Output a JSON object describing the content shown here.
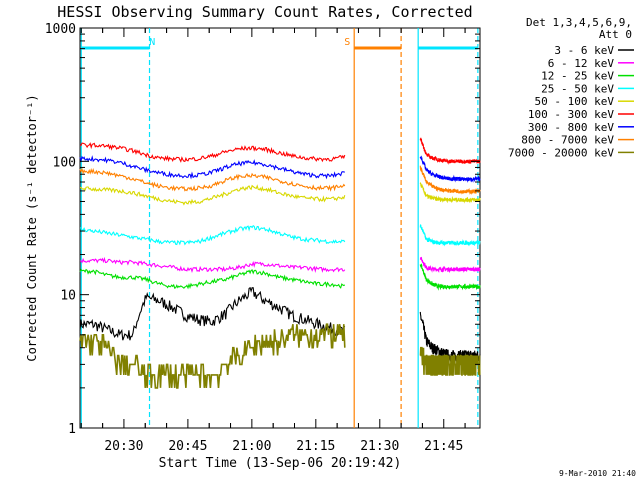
{
  "chart_data": {
    "type": "line",
    "title": "HESSI Observing Summary Count Rates, Corrected",
    "xlabel": "Start Time (13-Sep-06 20:19:42)",
    "ylabel": "Corrected Count Rate (s⁻¹ detector⁻¹)",
    "yscale": "log",
    "xlim_minutes": [
      20.7,
      20.922
    ],
    "ylim": [
      1,
      1000
    ],
    "x_ticks": [
      "20:30",
      "20:45",
      "21:00",
      "21:15",
      "21:30",
      "21:45"
    ],
    "y_ticks": [
      "1",
      "10",
      "100",
      "1000"
    ],
    "legend_header": [
      "Det 1,3,4,5,6,9,",
      "Att 0"
    ],
    "legend_position": "right",
    "footer": "9-Mar-2010 21:40",
    "x_unit": "time (HH:MM, 13-Sep-06)",
    "gaps": [
      [
        "21:22",
        "21:39"
      ]
    ],
    "flags": [
      {
        "label": "N",
        "color": "#00e5ff",
        "bars": [
          [
            "20:20",
            "20:36"
          ],
          [
            "21:39",
            "21:53"
          ]
        ],
        "markers": [
          "20:20",
          "20:36",
          "21:39",
          "21:53"
        ]
      },
      {
        "label": "S",
        "color": "#ff8000",
        "bars": [
          [
            "21:24",
            "21:35"
          ]
        ],
        "markers": [
          "21:24",
          "21:35"
        ]
      }
    ],
    "series": [
      {
        "name": "3 - 6 keV",
        "color": "#000000",
        "pre": [
          6,
          6,
          5.5,
          5,
          5,
          9.5,
          9,
          8,
          7,
          6.5,
          6.3,
          7.2,
          9,
          10.5,
          9,
          8,
          7,
          6.5,
          6,
          5.6,
          5.3
        ],
        "post": [
          7,
          4.5,
          4,
          3.8,
          3.6,
          3.5,
          3.5,
          3.5,
          3.5,
          3.5,
          3.5
        ]
      },
      {
        "name": "6 - 12 keV",
        "color": "#ff00ff",
        "pre": [
          18,
          18,
          18,
          17.5,
          17.5,
          17,
          16.5,
          16,
          15.5,
          15.5,
          15.5,
          15.5,
          16,
          17,
          17,
          16.5,
          16,
          16,
          15.5,
          15.5,
          15.5
        ],
        "post": [
          19,
          16,
          15.5,
          15.5,
          15.5,
          15.5,
          15.5,
          15.5,
          15.5,
          15.5,
          15.5
        ]
      },
      {
        "name": "12 - 25 keV",
        "color": "#00e000",
        "pre": [
          15,
          15,
          14,
          13.5,
          13.5,
          13,
          12,
          11.5,
          11.5,
          12,
          12.5,
          13,
          14,
          15,
          14.5,
          13.5,
          13,
          12.5,
          12,
          12,
          11.5
        ],
        "post": [
          17,
          13,
          12,
          11.5,
          11.5,
          11.5,
          11.5,
          11.5,
          11.5,
          11.5,
          11.5
        ]
      },
      {
        "name": "25 - 50 keV",
        "color": "#00ffff",
        "pre": [
          31,
          30,
          29,
          28,
          27,
          26,
          25,
          24.5,
          24.5,
          25,
          27,
          29,
          31,
          32,
          31,
          29,
          27,
          26,
          25.5,
          25,
          25
        ],
        "post": [
          33,
          26,
          25,
          24.5,
          24.5,
          24.5,
          24.5,
          24.5,
          24.5,
          24.5,
          24.5
        ]
      },
      {
        "name": "50 - 100 keV",
        "color": "#d8d800",
        "pre": [
          63,
          62,
          61,
          60,
          58,
          55,
          52,
          50,
          49,
          50,
          53,
          57,
          62,
          64,
          62,
          58,
          55,
          53,
          52,
          52,
          54
        ],
        "post": [
          68,
          55,
          53,
          52,
          52,
          51.5,
          51.5,
          51.5,
          51.5,
          51.5,
          51.5
        ]
      },
      {
        "name": "100 - 300 keV",
        "color": "#ff0000",
        "pre": [
          133,
          132,
          130,
          126,
          120,
          112,
          106,
          104,
          103,
          105,
          110,
          118,
          124,
          126,
          123,
          116,
          110,
          106,
          104,
          104,
          108
        ],
        "post": [
          150,
          112,
          106,
          103,
          101,
          100,
          100,
          100,
          100,
          100,
          100
        ]
      },
      {
        "name": "300 - 800 keV",
        "color": "#0000ff",
        "pre": [
          105,
          104,
          102,
          98,
          92,
          86,
          82,
          79,
          78,
          79,
          83,
          90,
          96,
          98,
          95,
          89,
          84,
          80,
          78,
          78,
          82
        ],
        "post": [
          110,
          86,
          80,
          77,
          75,
          74,
          74,
          73.5,
          73.5,
          73.5,
          73.5
        ]
      },
      {
        "name": "800 - 7000 keV",
        "color": "#ff8000",
        "pre": [
          85,
          84,
          82,
          78,
          74,
          69,
          65,
          63,
          62,
          63,
          66,
          72,
          77,
          78,
          76,
          72,
          68,
          65,
          63,
          63,
          66
        ],
        "post": [
          90,
          70,
          65,
          62,
          61,
          60,
          60,
          59.5,
          59.5,
          59.5,
          59.5
        ]
      },
      {
        "name": "7000 - 20000 keV",
        "color": "#808000",
        "pre": [
          4.5,
          4.5,
          4,
          3,
          3,
          2.5,
          2.5,
          2.5,
          2.5,
          2.5,
          2.5,
          3,
          3.5,
          4,
          4.5,
          4.5,
          5,
          5,
          5,
          5,
          5
        ],
        "post": [
          3.5,
          3,
          3,
          3,
          3,
          3,
          3,
          3,
          3,
          3,
          3
        ]
      }
    ]
  }
}
